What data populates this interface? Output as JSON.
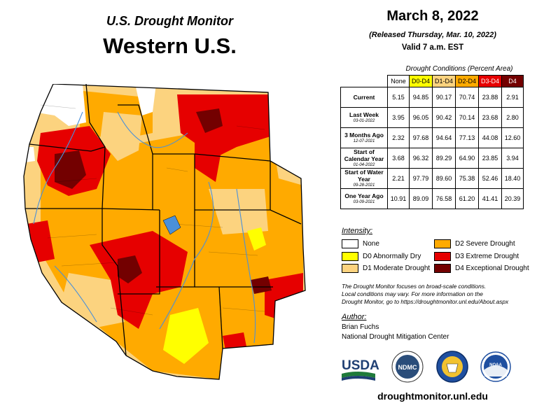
{
  "header": {
    "product_title": "U.S. Drought Monitor",
    "region_title": "Western U.S.",
    "date": "March 8, 2022",
    "released": "(Released Thursday, Mar. 10, 2022)",
    "valid": "Valid 7 a.m. EST"
  },
  "table": {
    "caption": "Drought Conditions (Percent Area)",
    "columns": [
      {
        "label": "None",
        "color": "#ffffff"
      },
      {
        "label": "D0-D4",
        "color": "#ffff00"
      },
      {
        "label": "D1-D4",
        "color": "#fcd37f"
      },
      {
        "label": "D2-D4",
        "color": "#ffaa00"
      },
      {
        "label": "D3-D4",
        "color": "#e60000"
      },
      {
        "label": "D4",
        "color": "#730000"
      }
    ],
    "rows": [
      {
        "label": "Current",
        "date": "",
        "values": [
          "5.15",
          "94.85",
          "90.17",
          "70.74",
          "23.88",
          "2.91"
        ]
      },
      {
        "label": "Last Week",
        "date": "03-01-2022",
        "values": [
          "3.95",
          "96.05",
          "90.42",
          "70.14",
          "23.68",
          "2.80"
        ]
      },
      {
        "label": "3 Months Ago",
        "date": "12-07-2021",
        "values": [
          "2.32",
          "97.68",
          "94.64",
          "77.13",
          "44.08",
          "12.60"
        ]
      },
      {
        "label": "Start of Calendar Year",
        "date": "01-04-2022",
        "values": [
          "3.68",
          "96.32",
          "89.29",
          "64.90",
          "23.85",
          "3.94"
        ]
      },
      {
        "label": "Start of Water Year",
        "date": "09-28-2021",
        "values": [
          "2.21",
          "97.79",
          "89.60",
          "75.38",
          "52.46",
          "18.40"
        ]
      },
      {
        "label": "One Year Ago",
        "date": "03-09-2021",
        "values": [
          "10.91",
          "89.09",
          "76.58",
          "61.20",
          "41.41",
          "20.39"
        ]
      }
    ]
  },
  "legend": {
    "title": "Intensity:",
    "items": [
      {
        "label": "None",
        "color": "#ffffff"
      },
      {
        "label": "D0 Abnormally Dry",
        "color": "#ffff00"
      },
      {
        "label": "D1 Moderate Drought",
        "color": "#fcd37f"
      },
      {
        "label": "D2 Severe Drought",
        "color": "#ffaa00"
      },
      {
        "label": "D3 Extreme Drought",
        "color": "#e60000"
      },
      {
        "label": "D4 Exceptional Drought",
        "color": "#730000"
      }
    ]
  },
  "note": {
    "line1": "The Drought Monitor focuses on broad-scale conditions.",
    "line2": "Local conditions may vary. For more information on the",
    "line3": "Drought Monitor, go to https://droughtmonitor.unl.edu/About.aspx"
  },
  "author": {
    "title": "Author:",
    "name": "Brian Fuchs",
    "org": "National Drought Mitigation Center"
  },
  "logos": {
    "usda": "USDA",
    "ndmc": "NDMC",
    "noaa": "NOAA"
  },
  "footer": {
    "url": "droughtmonitor.unl.edu"
  }
}
